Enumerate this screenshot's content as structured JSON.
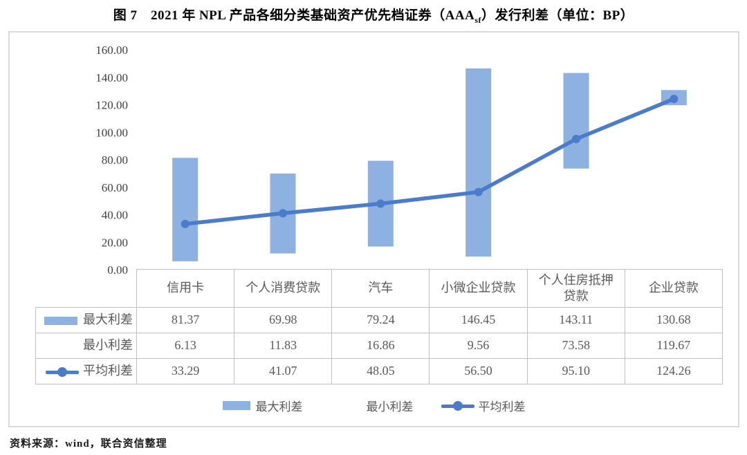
{
  "title": {
    "prefix": "图 7　2021 年 NPL 产品各细分类基础资产优先档证券（AAA",
    "subscript": "sf",
    "suffix": "）发行利差（单位：BP）"
  },
  "source_note": "资料来源：wind，联合资信整理",
  "colors": {
    "bar": "#8db1e1",
    "line": "#4a7ccb",
    "axis": "#d9d9d9",
    "table_border": "#bfbfbf",
    "text_gray": "#595959",
    "tick_text": "#3f3f3f"
  },
  "chart_data": {
    "type": "bar",
    "subtype": "floating-range-bars-with-average-line",
    "categories": [
      "信用卡",
      "个人消费贷款",
      "汽车",
      "小微企业贷款",
      "个人住房抵押贷款",
      "企业贷款"
    ],
    "series": [
      {
        "name": "最大利差",
        "role": "range-max",
        "marker": "bar",
        "values": [
          81.37,
          69.98,
          79.24,
          146.45,
          143.11,
          130.68
        ]
      },
      {
        "name": "最小利差",
        "role": "range-min",
        "marker": "none",
        "values": [
          6.13,
          11.83,
          16.86,
          9.56,
          73.58,
          119.67
        ]
      },
      {
        "name": "平均利差",
        "role": "average",
        "marker": "line-dot",
        "values": [
          33.29,
          41.07,
          48.05,
          56.5,
          95.1,
          124.26
        ]
      }
    ],
    "title": "2021 年 NPL 产品各细分类基础资产优先档证券（AAAsf）发行利差",
    "unit": "BP",
    "xlabel": "",
    "ylabel": "",
    "ylim": [
      0,
      160
    ],
    "ytick_step": 20,
    "ytick_labels": [
      "160.00",
      "140.00",
      "120.00",
      "100.00",
      "80.00",
      "60.00",
      "40.00",
      "20.00",
      "0.00"
    ],
    "grid": false,
    "legend_position": "bottom",
    "value_decimals": 2
  }
}
